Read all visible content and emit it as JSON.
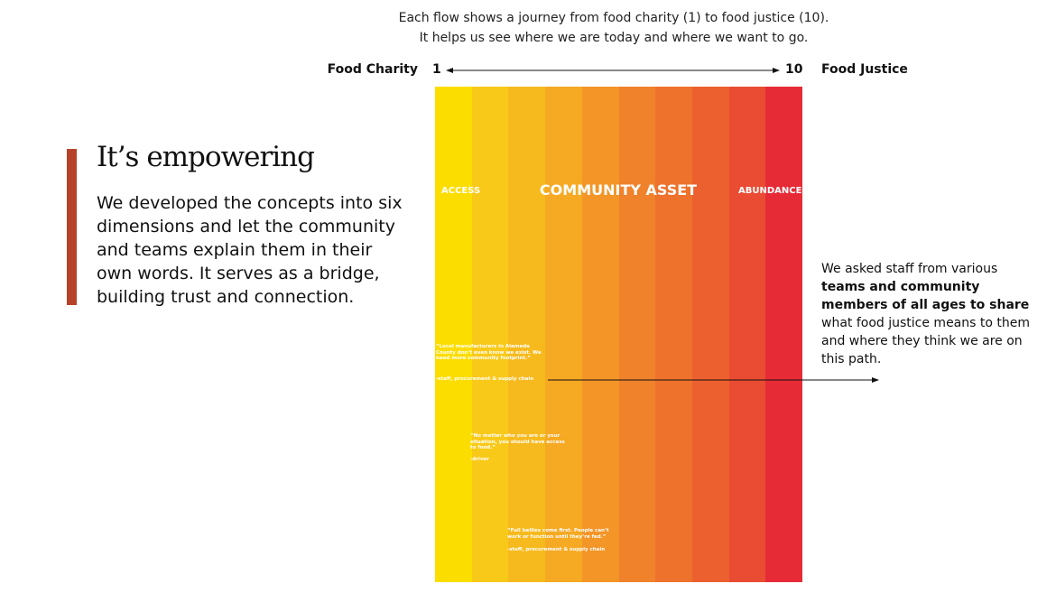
{
  "caption": {
    "line1": "Each flow shows a journey from food charity (1) to food justice (10).",
    "line2": "It helps us see where we are today and where we want to go."
  },
  "scale": {
    "left_label": "Food Charity",
    "left_value": 1,
    "right_value": 10,
    "right_label": "Food Justice"
  },
  "section": {
    "heading": "It’s empowering",
    "body": "We developed the concepts into six dimensions and let the community and teams explain them in their own words. It serves as a bridge, building trust and connection."
  },
  "panel": {
    "left_label": "ACCESS",
    "center_label": "COMMUNITY ASSET",
    "right_label": "ABUNDANCE",
    "quotes": [
      {
        "text": "“Local manufacturers in Alameda County don’t even know we exist. We need more community footprint.”",
        "attribution": "-staff, procurement & supply chain"
      },
      {
        "text": "“No matter who you are or your situation, you should have access to food.”",
        "attribution": "-driver"
      },
      {
        "text": "“Full bellies come first. People can’t work or function until they’re fed.”",
        "attribution": "-staff, procurement & supply chain"
      }
    ]
  },
  "note": {
    "before": "We asked staff from various",
    "bold": "teams and community members of all ages to share",
    "after": "what food justice means to them and where they think we are on this path."
  }
}
